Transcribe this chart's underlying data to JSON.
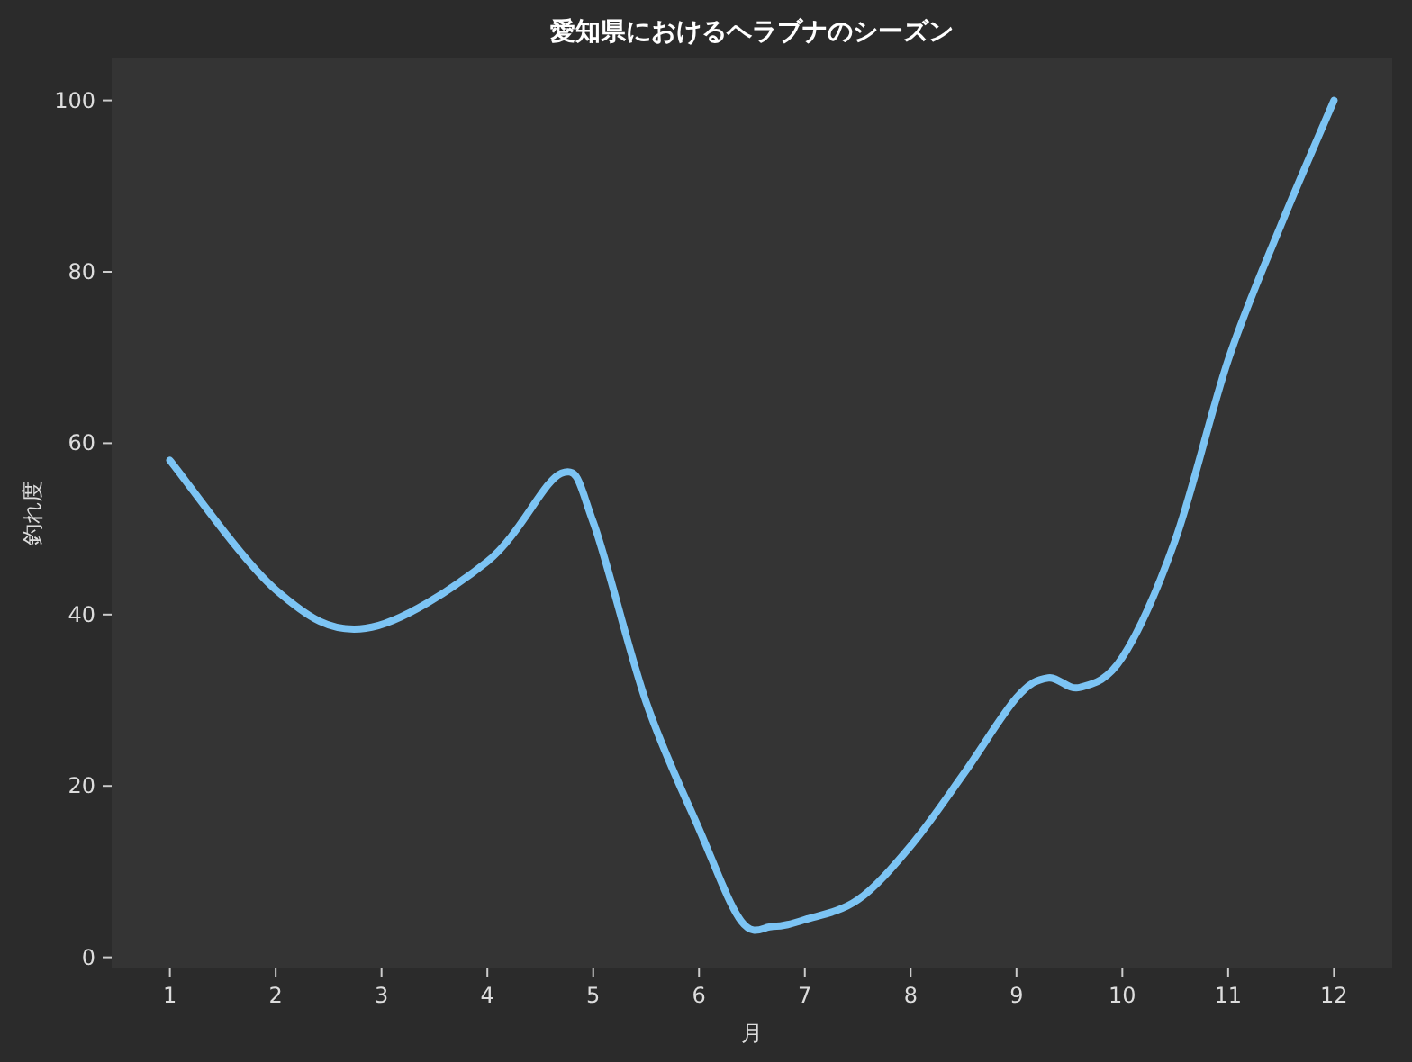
{
  "chart_data": {
    "type": "line",
    "title": "愛知県におけるヘラブナのシーズン",
    "xlabel": "月",
    "ylabel": "釣れ度",
    "series": [
      {
        "color": "#7cc4f4",
        "x": [
          1,
          2,
          2.85,
          4,
          4.7,
          5,
          5.5,
          6,
          6.4,
          6.7,
          7,
          7.5,
          8,
          8.5,
          9,
          9.3,
          9.6,
          10,
          10.5,
          11,
          11.5,
          12
        ],
        "values": [
          58,
          42.9,
          38.4,
          46.2,
          56.5,
          50.8,
          29.8,
          15,
          4.2,
          3.6,
          4.4,
          6.7,
          13,
          21.4,
          30.3,
          32.6,
          31.5,
          35,
          48.7,
          69.7,
          85.5,
          100
        ]
      }
    ],
    "xlim": [
      0.45,
      12.55
    ],
    "ylim": [
      -1.3,
      105
    ],
    "xticks": [
      1,
      2,
      3,
      4,
      5,
      6,
      7,
      8,
      9,
      10,
      11,
      12
    ],
    "yticks": [
      0,
      20,
      40,
      60,
      80,
      100
    ],
    "grid": false,
    "marker": "none",
    "line_style": "solid"
  }
}
